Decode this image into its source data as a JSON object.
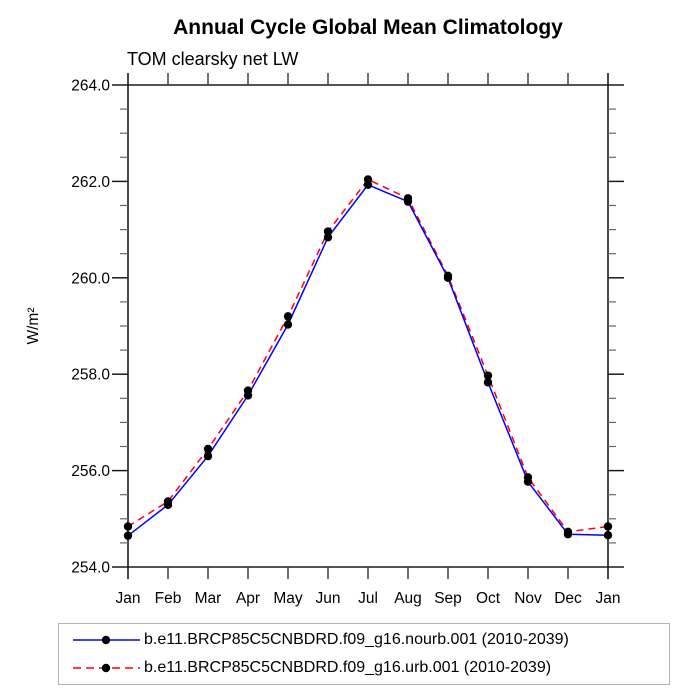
{
  "header": {
    "title": "Annual Cycle Global Mean Climatology",
    "subtitle": "TOM clearsky net LW"
  },
  "chart_data": {
    "type": "line",
    "title": "Annual Cycle Global Mean Climatology",
    "subtitle": "TOM clearsky net LW",
    "xlabel": "",
    "ylabel": "W/m²",
    "x_categories": [
      "Jan",
      "Feb",
      "Mar",
      "Apr",
      "May",
      "Jun",
      "Jul",
      "Aug",
      "Sep",
      "Oct",
      "Nov",
      "Dec",
      "Jan"
    ],
    "ylim": [
      254.0,
      264.0
    ],
    "y_major_step": 2.0,
    "y_minor_step": 0.5,
    "y_tick_labels": [
      "254.0",
      "256.0",
      "258.0",
      "260.0",
      "262.0",
      "264.0"
    ],
    "grid": false,
    "legend_position": "bottom",
    "series": [
      {
        "name": "b.e11.BRCP85C5CNBDRD.f09_g16.nourb.001 (2010-2039)",
        "color": "#0000ff",
        "line_style": "solid",
        "marker": "circle",
        "marker_color": "#000000",
        "values": [
          254.65,
          255.29,
          256.3,
          257.56,
          259.03,
          260.84,
          261.93,
          261.58,
          260.0,
          257.83,
          255.77,
          254.68,
          254.66
        ]
      },
      {
        "name": "b.e11.BRCP85C5CNBDRD.f09_g16.urb.001 (2010-2039)",
        "color": "#ff0000",
        "line_style": "dashed",
        "marker": "circle",
        "marker_color": "#000000",
        "values": [
          254.84,
          255.36,
          256.45,
          257.66,
          259.2,
          260.96,
          262.04,
          261.65,
          260.04,
          257.97,
          255.86,
          254.73,
          254.84
        ]
      }
    ]
  },
  "legend": {
    "border_color": "#b4b4b4",
    "entries": [
      {
        "label": "b.e11.BRCP85C5CNBDRD.f09_g16.nourb.001 (2010-2039)"
      },
      {
        "label": "b.e11.BRCP85C5CNBDRD.f09_g16.urb.001 (2010-2039)"
      }
    ]
  }
}
